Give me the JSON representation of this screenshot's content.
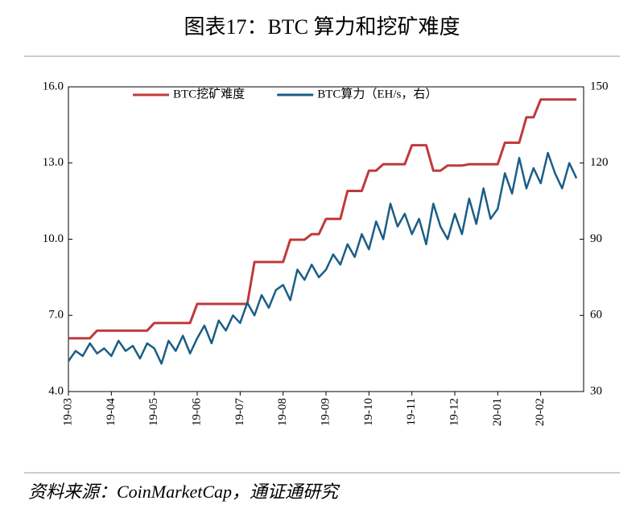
{
  "chart_data": {
    "type": "line",
    "title": "图表17：BTC 算力和挖矿难度",
    "source": "资料来源：CoinMarketCap，通证通研究",
    "categories": [
      "19-03",
      null,
      null,
      null,
      null,
      null,
      "19-04",
      null,
      null,
      null,
      null,
      null,
      "19-05",
      null,
      null,
      null,
      null,
      null,
      "19-06",
      null,
      null,
      null,
      null,
      null,
      "19-07",
      null,
      null,
      null,
      null,
      null,
      "19-08",
      null,
      null,
      null,
      null,
      null,
      "19-09",
      null,
      null,
      null,
      null,
      null,
      "19-10",
      null,
      null,
      null,
      null,
      null,
      "19-11",
      null,
      null,
      null,
      null,
      null,
      "19-12",
      null,
      null,
      null,
      null,
      null,
      "20-01",
      null,
      null,
      null,
      null,
      null,
      "20-02",
      null,
      null,
      null,
      null,
      null
    ],
    "series": [
      {
        "name": "BTC挖矿难度",
        "color": "#c0393b",
        "axis": "y",
        "values": [
          6.1,
          6.1,
          6.1,
          6.1,
          6.4,
          6.4,
          6.4,
          6.4,
          6.4,
          6.4,
          6.4,
          6.4,
          6.7,
          6.7,
          6.7,
          6.7,
          6.7,
          6.7,
          7.45,
          7.45,
          7.45,
          7.45,
          7.45,
          7.45,
          7.45,
          7.45,
          9.1,
          9.1,
          9.1,
          9.1,
          9.1,
          9.98,
          9.98,
          9.98,
          10.2,
          10.2,
          10.8,
          10.8,
          10.8,
          11.9,
          11.9,
          11.9,
          12.7,
          12.7,
          12.95,
          12.95,
          12.95,
          12.95,
          13.7,
          13.7,
          13.7,
          12.7,
          12.7,
          12.9,
          12.9,
          12.9,
          12.95,
          12.95,
          12.95,
          12.95,
          12.95,
          13.8,
          13.8,
          13.8,
          14.8,
          14.8,
          15.5,
          15.5,
          15.5,
          15.5,
          15.5,
          15.5
        ]
      },
      {
        "name": "BTC算力（EH/s，右）",
        "color": "#1b5e87",
        "axis": "y2",
        "values": [
          42,
          46,
          44,
          49,
          45,
          47,
          44,
          50,
          46,
          48,
          43,
          49,
          47,
          41,
          50,
          46,
          52,
          45,
          51,
          56,
          49,
          58,
          54,
          60,
          57,
          65,
          60,
          68,
          63,
          70,
          72,
          66,
          78,
          74,
          80,
          75,
          78,
          84,
          80,
          88,
          83,
          92,
          86,
          97,
          90,
          104,
          95,
          100,
          92,
          98,
          88,
          104,
          95,
          90,
          100,
          92,
          106,
          96,
          110,
          98,
          102,
          116,
          108,
          122,
          110,
          118,
          112,
          124,
          116,
          110,
          120,
          114
        ]
      }
    ],
    "ylim": [
      4,
      16
    ],
    "yticks": [
      {
        "value": 4,
        "label": "4.0"
      },
      {
        "value": 7,
        "label": "7.0"
      },
      {
        "value": 10,
        "label": "10.0"
      },
      {
        "value": 13,
        "label": "13.0"
      },
      {
        "value": 16,
        "label": "16.0"
      }
    ],
    "y2lim": [
      30,
      150
    ],
    "y2ticks": [
      30,
      60,
      90,
      120,
      150
    ],
    "legend": "top"
  }
}
